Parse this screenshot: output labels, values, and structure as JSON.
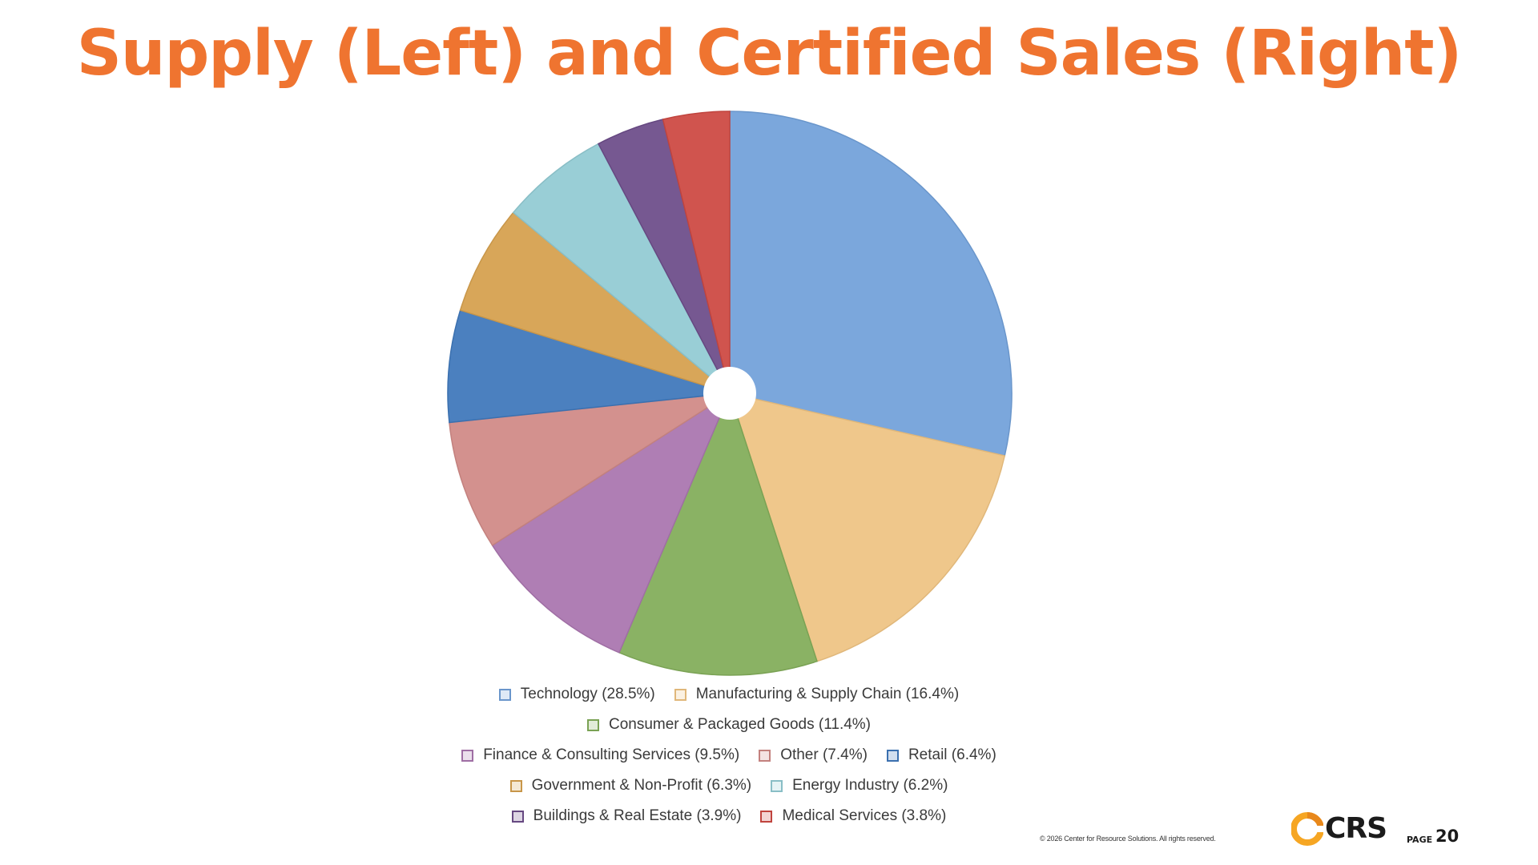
{
  "slide": {
    "title": "Supply (Left) and Certified Sales (Right)",
    "copyright": "© 2026 Center for Resource Solutions.  All rights reserved.",
    "logo_text": "CRS",
    "page_label": "PAGE",
    "page_number": "20"
  },
  "colors": {
    "title": "#EF7430",
    "logo_accent": "#F6A623"
  },
  "chart_data": {
    "type": "pie",
    "title": "",
    "donut_hole": true,
    "legend_position": "bottom",
    "slices": [
      {
        "label": "Technology (28.5%)",
        "value": 28.5,
        "color": "#7BA7DC",
        "stroke": "#6A96CB"
      },
      {
        "label": "Manufacturing & Supply Chain (16.4%)",
        "value": 16.4,
        "color": "#EFC78B",
        "stroke": "#E0B77A"
      },
      {
        "label": "Consumer & Packaged Goods (11.4%)",
        "value": 11.4,
        "color": "#8AB264",
        "stroke": "#7AA254"
      },
      {
        "label": "Finance & Consulting Services (9.5%)",
        "value": 9.5,
        "color": "#AF7EB4",
        "stroke": "#9F6EA4"
      },
      {
        "label": "Other (7.4%)",
        "value": 7.4,
        "color": "#D3918E",
        "stroke": "#C3817E"
      },
      {
        "label": "Retail (6.4%)",
        "value": 6.4,
        "color": "#4B80BF",
        "stroke": "#3B70AF"
      },
      {
        "label": "Government & Non-Profit (6.3%)",
        "value": 6.3,
        "color": "#D8A659",
        "stroke": "#C89649"
      },
      {
        "label": "Energy Industry (6.2%)",
        "value": 6.2,
        "color": "#99CED6",
        "stroke": "#89BEC6"
      },
      {
        "label": "Buildings & Real Estate (3.9%)",
        "value": 3.9,
        "color": "#765891",
        "stroke": "#664881"
      },
      {
        "label": "Medical Services (3.8%)",
        "value": 3.8,
        "color": "#D0544E",
        "stroke": "#C0443E"
      }
    ],
    "legend_rows": [
      [
        0,
        1
      ],
      [
        2
      ],
      [
        3,
        4,
        5
      ],
      [
        6,
        7
      ],
      [
        8,
        9
      ]
    ]
  }
}
